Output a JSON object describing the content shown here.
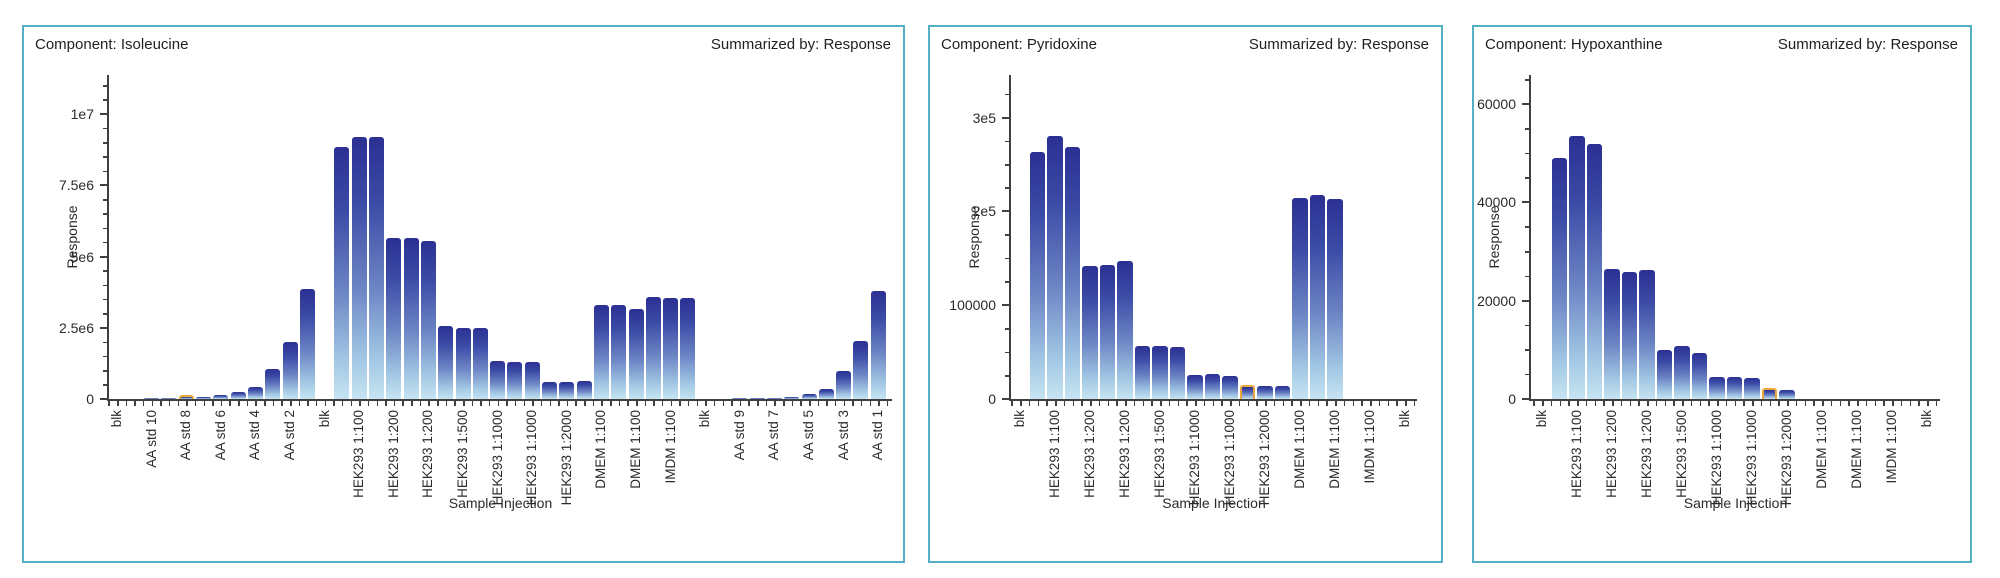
{
  "app": {
    "background": "#ffffff",
    "panel_border_color": "#54aec6",
    "axis_color": "#3f3f3f",
    "text_color": "#1f1f1f",
    "bar_gradient_top": "#2b3092",
    "bar_gradient_bottom": "#c6e4f2",
    "highlight_color": "#eba73c"
  },
  "chart_data": [
    {
      "type": "bar",
      "id": "isoleucine",
      "title_left": "Component: Isoleucine",
      "title_right": "Summarized by: Response",
      "xlabel": "Sample Injection",
      "ylabel": "Response",
      "y_axis": {
        "minor_step": 500000,
        "approx_max": 11300000,
        "ticks": [
          {
            "value": 0,
            "label": "0"
          },
          {
            "value": 2500000,
            "label": "2.5e6"
          },
          {
            "value": 5000000,
            "label": "5e6"
          },
          {
            "value": 7500000,
            "label": "7.5e6"
          },
          {
            "value": 10000000,
            "label": "1e7"
          }
        ]
      },
      "bars": [
        {
          "label": "blk",
          "value": 0
        },
        {
          "label": "",
          "value": 0
        },
        {
          "label": "AA std 10",
          "value": 12000
        },
        {
          "label": "",
          "value": 35000
        },
        {
          "label": "AA std 8",
          "value": 100000,
          "highlight": true
        },
        {
          "label": "",
          "value": 70000
        },
        {
          "label": "AA std 6",
          "value": 150000
        },
        {
          "label": "",
          "value": 230000
        },
        {
          "label": "AA std 4",
          "value": 410000
        },
        {
          "label": "",
          "value": 1040000
        },
        {
          "label": "AA std 2",
          "value": 2000000
        },
        {
          "label": "",
          "value": 3850000
        },
        {
          "label": "blk",
          "value": 0
        },
        {
          "label": "",
          "value": 8850000
        },
        {
          "label": "HEK293 1:100",
          "value": 9200000
        },
        {
          "label": "",
          "value": 9200000
        },
        {
          "label": "HEK293 1:200",
          "value": 5650000
        },
        {
          "label": "",
          "value": 5650000
        },
        {
          "label": "HEK293 1:200",
          "value": 5550000
        },
        {
          "label": "",
          "value": 2550000
        },
        {
          "label": "HEK293 1:500",
          "value": 2500000
        },
        {
          "label": "",
          "value": 2500000
        },
        {
          "label": "HEK293 1:1000",
          "value": 1350000
        },
        {
          "label": "",
          "value": 1300000
        },
        {
          "label": "HEK293 1:1000",
          "value": 1300000
        },
        {
          "label": "",
          "value": 600000
        },
        {
          "label": "HEK293 1:2000",
          "value": 600000
        },
        {
          "label": "",
          "value": 620000
        },
        {
          "label": "DMEM 1:100",
          "value": 3300000
        },
        {
          "label": "",
          "value": 3300000
        },
        {
          "label": "DMEM 1:100",
          "value": 3160000
        },
        {
          "label": "",
          "value": 3590000
        },
        {
          "label": "IMDM 1:100",
          "value": 3550000
        },
        {
          "label": "",
          "value": 3550000
        },
        {
          "label": "blk",
          "value": 0
        },
        {
          "label": "",
          "value": 0
        },
        {
          "label": "AA std 9",
          "value": 20000
        },
        {
          "label": "",
          "value": 25000
        },
        {
          "label": "AA std 7",
          "value": 40000
        },
        {
          "label": "",
          "value": 80000
        },
        {
          "label": "AA std 5",
          "value": 170000
        },
        {
          "label": "",
          "value": 350000
        },
        {
          "label": "AA std 3",
          "value": 1000000
        },
        {
          "label": "",
          "value": 2050000
        },
        {
          "label": "AA std 1",
          "value": 3800000
        }
      ]
    },
    {
      "type": "bar",
      "id": "pyridoxine",
      "title_left": "Component: Pyridoxine",
      "title_right": "Summarized by: Response",
      "xlabel": "Sample Injection",
      "ylabel": "Response",
      "y_axis": {
        "minor_step": 25000,
        "approx_max": 345000,
        "ticks": [
          {
            "value": 0,
            "label": "0"
          },
          {
            "value": 100000,
            "label": "100000"
          },
          {
            "value": 200000,
            "label": "2e5"
          },
          {
            "value": 300000,
            "label": "3e5"
          }
        ]
      },
      "bars": [
        {
          "label": "blk",
          "value": 0
        },
        {
          "label": "",
          "value": 263000
        },
        {
          "label": "HEK293 1:100",
          "value": 280000
        },
        {
          "label": "",
          "value": 269000
        },
        {
          "label": "HEK293 1:200",
          "value": 142000
        },
        {
          "label": "",
          "value": 143000
        },
        {
          "label": "HEK293 1:200",
          "value": 147000
        },
        {
          "label": "",
          "value": 56000
        },
        {
          "label": "HEK293 1:500",
          "value": 56000
        },
        {
          "label": "",
          "value": 55000
        },
        {
          "label": "HEK293 1:1000",
          "value": 26000
        },
        {
          "label": "",
          "value": 27000
        },
        {
          "label": "HEK293 1:1000",
          "value": 25000
        },
        {
          "label": "",
          "value": 15000,
          "highlight": true
        },
        {
          "label": "HEK293 1:2000",
          "value": 13500
        },
        {
          "label": "",
          "value": 14000
        },
        {
          "label": "DMEM 1:100",
          "value": 214000
        },
        {
          "label": "",
          "value": 218000
        },
        {
          "label": "DMEM 1:100",
          "value": 213000
        },
        {
          "label": "",
          "value": 0
        },
        {
          "label": "IMDM 1:100",
          "value": 0
        },
        {
          "label": "",
          "value": 0
        },
        {
          "label": "blk",
          "value": 0
        }
      ]
    },
    {
      "type": "bar",
      "id": "hypoxanthine",
      "title_left": "Component: Hypoxanthine",
      "title_right": "Summarized by: Response",
      "xlabel": "Sample Injection",
      "ylabel": "Response",
      "y_axis": {
        "minor_step": 5000,
        "approx_max": 66000,
        "ticks": [
          {
            "value": 0,
            "label": "0"
          },
          {
            "value": 20000,
            "label": "20000"
          },
          {
            "value": 40000,
            "label": "40000"
          },
          {
            "value": 60000,
            "label": "60000"
          }
        ]
      },
      "bars": [
        {
          "label": "blk",
          "value": 0
        },
        {
          "label": "",
          "value": 49000
        },
        {
          "label": "HEK293 1:100",
          "value": 53600
        },
        {
          "label": "",
          "value": 51800
        },
        {
          "label": "HEK293 1:200",
          "value": 26500
        },
        {
          "label": "",
          "value": 25800
        },
        {
          "label": "HEK293 1:200",
          "value": 26300
        },
        {
          "label": "",
          "value": 9900
        },
        {
          "label": "HEK293 1:500",
          "value": 10700
        },
        {
          "label": "",
          "value": 9300
        },
        {
          "label": "HEK293 1:1000",
          "value": 4400
        },
        {
          "label": "",
          "value": 4400
        },
        {
          "label": "HEK293 1:1000",
          "value": 4300
        },
        {
          "label": "",
          "value": 2300,
          "highlight": true
        },
        {
          "label": "HEK293 1:2000",
          "value": 1900
        },
        {
          "label": "",
          "value": 0
        },
        {
          "label": "DMEM 1:100",
          "value": 0
        },
        {
          "label": "",
          "value": 0
        },
        {
          "label": "DMEM 1:100",
          "value": 0
        },
        {
          "label": "",
          "value": 0
        },
        {
          "label": "IMDM 1:100",
          "value": 0
        },
        {
          "label": "",
          "value": 0
        },
        {
          "label": "blk",
          "value": 0
        }
      ]
    }
  ]
}
